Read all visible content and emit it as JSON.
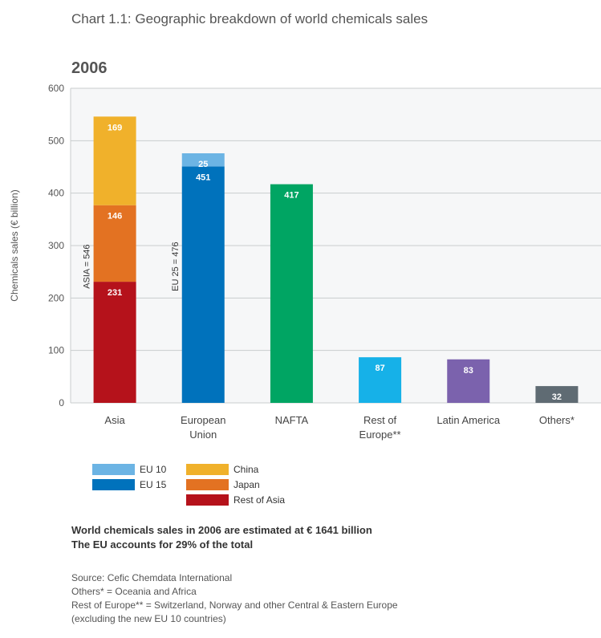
{
  "title": "Chart 1.1: Geographic breakdown of world chemicals sales",
  "year": "2006",
  "chart_data": {
    "type": "bar",
    "stacked": true,
    "ylabel": "Chemicals sales (€ billion)",
    "xlabel": "",
    "ylim": [
      0,
      600
    ],
    "yticks": [
      0,
      100,
      200,
      300,
      400,
      500,
      600
    ],
    "grid": true,
    "categories": [
      "Asia",
      "European Union",
      "NAFTA",
      "Rest of Europe**",
      "Latin America",
      "Others*"
    ],
    "category_labels": [
      [
        "Asia"
      ],
      [
        "European",
        "Union"
      ],
      [
        "NAFTA"
      ],
      [
        "Rest of",
        "Europe**"
      ],
      [
        "Latin America"
      ],
      [
        "Others*"
      ]
    ],
    "bars": [
      {
        "category": "Asia",
        "total_label": "ASIA = 546",
        "segments": [
          {
            "name": "Rest of Asia",
            "value": 231,
            "color": "#b5121b"
          },
          {
            "name": "Japan",
            "value": 146,
            "color": "#e37222"
          },
          {
            "name": "China",
            "value": 169,
            "color": "#f0b12b"
          }
        ]
      },
      {
        "category": "European Union",
        "total_label": "EU 25 = 476",
        "segments": [
          {
            "name": "EU 15",
            "value": 451,
            "color": "#0072bc"
          },
          {
            "name": "EU 10",
            "value": 25,
            "color": "#6cb4e4"
          }
        ]
      },
      {
        "category": "NAFTA",
        "segments": [
          {
            "name": "NAFTA",
            "value": 417,
            "color": "#00a563"
          }
        ]
      },
      {
        "category": "Rest of Europe**",
        "segments": [
          {
            "name": "Rest of Europe",
            "value": 87,
            "color": "#16b1e8"
          }
        ]
      },
      {
        "category": "Latin America",
        "segments": [
          {
            "name": "Latin America",
            "value": 83,
            "color": "#7b62ad"
          }
        ]
      },
      {
        "category": "Others*",
        "segments": [
          {
            "name": "Others",
            "value": 32,
            "color": "#5f6b73"
          }
        ]
      }
    ]
  },
  "legend": {
    "eu10": {
      "label": "EU 10",
      "color": "#6cb4e4"
    },
    "eu15": {
      "label": "EU 15",
      "color": "#0072bc"
    },
    "china": {
      "label": "China",
      "color": "#f0b12b"
    },
    "japan": {
      "label": "Japan",
      "color": "#e37222"
    },
    "rest_of_asia": {
      "label": "Rest of Asia",
      "color": "#b5121b"
    }
  },
  "notes": {
    "line1": "World chemicals sales in 2006 are estimated at € 1641 billion",
    "line2": "The EU accounts for 29% of the total"
  },
  "source": {
    "line1": "Source: Cefic Chemdata International",
    "line2": "Others* = Oceania and Africa",
    "line3": "Rest of Europe** = Switzerland, Norway and other Central & Eastern Europe",
    "line4": "(excluding the new EU 10 countries)"
  }
}
